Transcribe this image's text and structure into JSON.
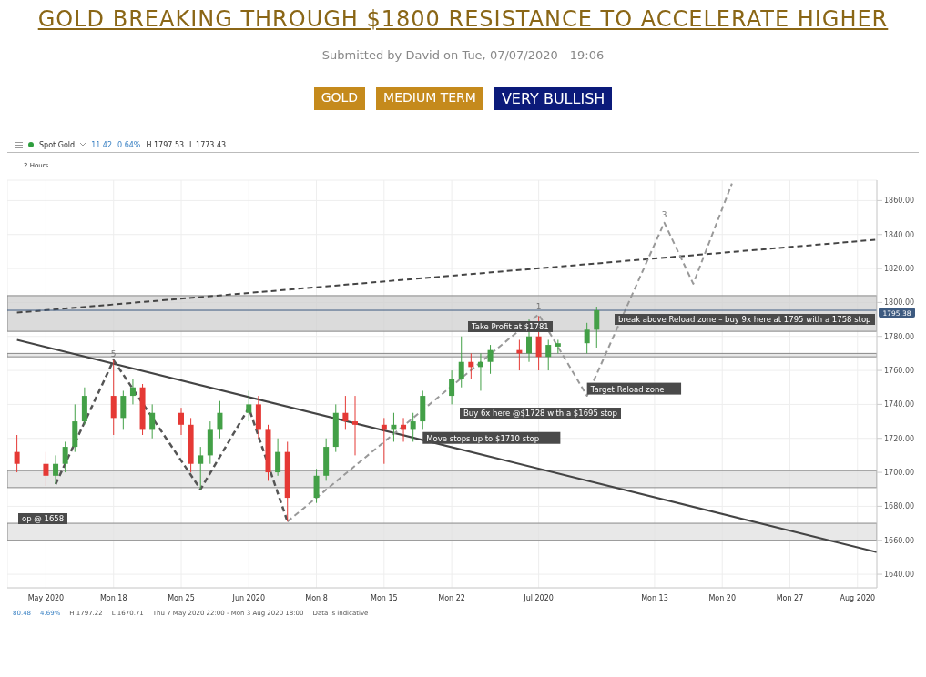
{
  "chart_data": {
    "type": "candlestick",
    "title": "GOLD BREAKING THROUGH $1800 RESISTANCE TO ACCELERATE HIGHER",
    "subtitle": "Submitted by David on Tue, 07/07/2020 - 19:06",
    "x": [
      "2020-05-08",
      "2020-05-11",
      "2020-05-12",
      "2020-05-13",
      "2020-05-14",
      "2020-05-15",
      "2020-05-18",
      "2020-05-19",
      "2020-05-20",
      "2020-05-21",
      "2020-05-22",
      "2020-05-25",
      "2020-05-26",
      "2020-05-27",
      "2020-05-28",
      "2020-05-29",
      "2020-06-01",
      "2020-06-02",
      "2020-06-03",
      "2020-06-04",
      "2020-06-05",
      "2020-06-08",
      "2020-06-09",
      "2020-06-10",
      "2020-06-11",
      "2020-06-12",
      "2020-06-15",
      "2020-06-16",
      "2020-06-17",
      "2020-06-18",
      "2020-06-19",
      "2020-06-22",
      "2020-06-23",
      "2020-06-24",
      "2020-06-25",
      "2020-06-26",
      "2020-06-29",
      "2020-06-30",
      "2020-07-01",
      "2020-07-02",
      "2020-07-03",
      "2020-07-06",
      "2020-07-07"
    ],
    "ohlc": [
      [
        1712,
        1722,
        1700,
        1705
      ],
      [
        1705,
        1712,
        1692,
        1698
      ],
      [
        1698,
        1710,
        1693,
        1705
      ],
      [
        1705,
        1718,
        1700,
        1715
      ],
      [
        1715,
        1740,
        1712,
        1730
      ],
      [
        1730,
        1750,
        1728,
        1745
      ],
      [
        1745,
        1766,
        1722,
        1732
      ],
      [
        1732,
        1748,
        1725,
        1745
      ],
      [
        1745,
        1755,
        1740,
        1750
      ],
      [
        1750,
        1752,
        1722,
        1725
      ],
      [
        1725,
        1740,
        1720,
        1735
      ],
      [
        1735,
        1738,
        1722,
        1728
      ],
      [
        1728,
        1732,
        1700,
        1705
      ],
      [
        1705,
        1715,
        1690,
        1710
      ],
      [
        1710,
        1730,
        1705,
        1725
      ],
      [
        1725,
        1742,
        1720,
        1735
      ],
      [
        1735,
        1748,
        1730,
        1740
      ],
      [
        1740,
        1745,
        1720,
        1725
      ],
      [
        1725,
        1728,
        1695,
        1700
      ],
      [
        1700,
        1720,
        1698,
        1712
      ],
      [
        1712,
        1718,
        1671,
        1685
      ],
      [
        1685,
        1702,
        1682,
        1698
      ],
      [
        1698,
        1720,
        1695,
        1715
      ],
      [
        1715,
        1740,
        1712,
        1735
      ],
      [
        1735,
        1745,
        1725,
        1730
      ],
      [
        1730,
        1745,
        1710,
        1728
      ],
      [
        1728,
        1732,
        1705,
        1725
      ],
      [
        1725,
        1735,
        1718,
        1728
      ],
      [
        1728,
        1732,
        1718,
        1725
      ],
      [
        1725,
        1735,
        1718,
        1730
      ],
      [
        1730,
        1748,
        1725,
        1745
      ],
      [
        1745,
        1760,
        1740,
        1755
      ],
      [
        1755,
        1780,
        1750,
        1765
      ],
      [
        1765,
        1770,
        1755,
        1762
      ],
      [
        1762,
        1770,
        1748,
        1765
      ],
      [
        1765,
        1775,
        1758,
        1772
      ],
      [
        1772,
        1778,
        1760,
        1770
      ],
      [
        1770,
        1790,
        1765,
        1780
      ],
      [
        1780,
        1792,
        1760,
        1768
      ],
      [
        1768,
        1778,
        1760,
        1775
      ],
      [
        1774,
        1778,
        1770,
        1776
      ],
      [
        1776,
        1788,
        1770,
        1784
      ],
      [
        1783.96,
        1797.53,
        1773.43,
        1795.38
      ]
    ],
    "colors": [
      "#e53935",
      "#e53935",
      "#43a047",
      "#43a047",
      "#43a047",
      "#43a047",
      "#e53935",
      "#43a047",
      "#43a047",
      "#e53935",
      "#43a047",
      "#e53935",
      "#e53935",
      "#43a047",
      "#43a047",
      "#43a047",
      "#43a047",
      "#e53935",
      "#e53935",
      "#43a047",
      "#e53935",
      "#43a047",
      "#43a047",
      "#43a047",
      "#e53935",
      "#e53935",
      "#e53935",
      "#43a047",
      "#e53935",
      "#43a047",
      "#43a047",
      "#43a047",
      "#43a047",
      "#e53935",
      "#43a047",
      "#43a047",
      "#e53935",
      "#43a047",
      "#e53935",
      "#43a047",
      "#43a047",
      "#43a047",
      "#43a047"
    ],
    "series": [
      {
        "type": "line",
        "x": [
          "2020-05-08",
          "2020-08-05"
        ],
        "values": [
          1778,
          1653
        ],
        "color": "#444444",
        "line_style": "solid"
      },
      {
        "type": "line",
        "x": [
          "2020-05-08",
          "2020-08-05"
        ],
        "values": [
          1794,
          1837
        ],
        "color": "#444444",
        "line_style": "dashed"
      },
      {
        "type": "line",
        "x": [
          "2020-05-12",
          "2020-05-18",
          "2020-05-27",
          "2020-06-01",
          "2020-06-05"
        ],
        "values": [
          1693,
          1766,
          1690,
          1738,
          1671
        ],
        "color": "#555555",
        "line_style": "dashed"
      },
      {
        "type": "line",
        "x": [
          "2020-06-05",
          "2020-07-01",
          "2020-07-06",
          "2020-07-14",
          "2020-07-17",
          "2020-07-21"
        ],
        "values": [
          1671,
          1793,
          1745,
          1847,
          1811,
          1870
        ],
        "color": "#999999",
        "line_style": "dashed"
      }
    ],
    "xlim": [
      "2020-05-07",
      "2020-08-05"
    ],
    "xticks": [
      {
        "value": "2020-05-11",
        "label": "May 2020"
      },
      {
        "value": "2020-05-18",
        "label": "Mon 18"
      },
      {
        "value": "2020-05-25",
        "label": "Mon 25"
      },
      {
        "value": "2020-06-01",
        "label": "Jun 2020"
      },
      {
        "value": "2020-06-08",
        "label": "Mon 8"
      },
      {
        "value": "2020-06-15",
        "label": "Mon 15"
      },
      {
        "value": "2020-06-22",
        "label": "Mon 22"
      },
      {
        "value": "2020-07-01",
        "label": "Jul 2020"
      },
      {
        "value": "2020-07-13",
        "label": "Mon 13"
      },
      {
        "value": "2020-07-20",
        "label": "Mon 20"
      },
      {
        "value": "2020-07-27",
        "label": "Mon 27"
      },
      {
        "value": "2020-08-03",
        "label": "Aug 2020"
      }
    ],
    "ylim": [
      1632,
      1872
    ],
    "yticks": [
      {
        "value": 1640,
        "label": "1640.00"
      },
      {
        "value": 1660,
        "label": "1660.00"
      },
      {
        "value": 1680,
        "label": "1680.00"
      },
      {
        "value": 1700,
        "label": "1700.00"
      },
      {
        "value": 1720,
        "label": "1720.00"
      },
      {
        "value": 1740,
        "label": "1740.00"
      },
      {
        "value": 1760,
        "label": "1760.00"
      },
      {
        "value": 1780,
        "label": "1780.00"
      },
      {
        "value": 1800,
        "label": "1800.00"
      },
      {
        "value": 1820,
        "label": "1820.00"
      },
      {
        "value": 1840,
        "label": "1840.00"
      },
      {
        "value": 1860,
        "label": "1860.00"
      }
    ],
    "grid": true,
    "ref_lines": [
      {
        "axis": "y",
        "value": 1795.38,
        "label": "1795.38",
        "color": "#3d5a80"
      }
    ],
    "bands": [
      {
        "axis": "y",
        "from": 1783,
        "to": 1804,
        "color": "#cfcfcf"
      },
      {
        "axis": "y",
        "from": 1691,
        "to": 1701,
        "color": "#e0e0e0"
      },
      {
        "axis": "y",
        "from": 1660,
        "to": 1670,
        "color": "#e0e0e0"
      },
      {
        "axis": "y",
        "from": 1768,
        "to": 1770,
        "color": "#e0e0e0"
      }
    ],
    "annotations": [
      "GOLD",
      "MEDIUM TERM",
      "VERY BULLISH",
      "Spot Gold",
      "11.42",
      "0.64%",
      "H 1797.53",
      "L 1773.43",
      "2 Hours",
      "80.48",
      "4.69%",
      "H 1797.22",
      "L 1670.71",
      "Thu 7 May 2020 22:00 - Mon 3 Aug 2020 18:00",
      "Data is indicative",
      {
        "text": "5",
        "x": "2020-05-18",
        "y": 1768
      },
      {
        "text": "1",
        "x": "2020-07-01",
        "y": 1796
      },
      {
        "text": "3",
        "x": "2020-07-14",
        "y": 1850
      },
      "Take Profit at $1781",
      "break above Reload zone – buy 9x here at 1795 with a 1758 stop",
      "Buy 6x here @$1728 with a $1695 stop",
      "op @ 1658",
      {
        "text": "Target Reload zone",
        "x": "2020-07-06",
        "y": 1749
      },
      {
        "text": "Move stops up to $1710 stop",
        "x": "2020-06-19",
        "y": 1720
      }
    ],
    "legend": false,
    "marker": "none"
  }
}
